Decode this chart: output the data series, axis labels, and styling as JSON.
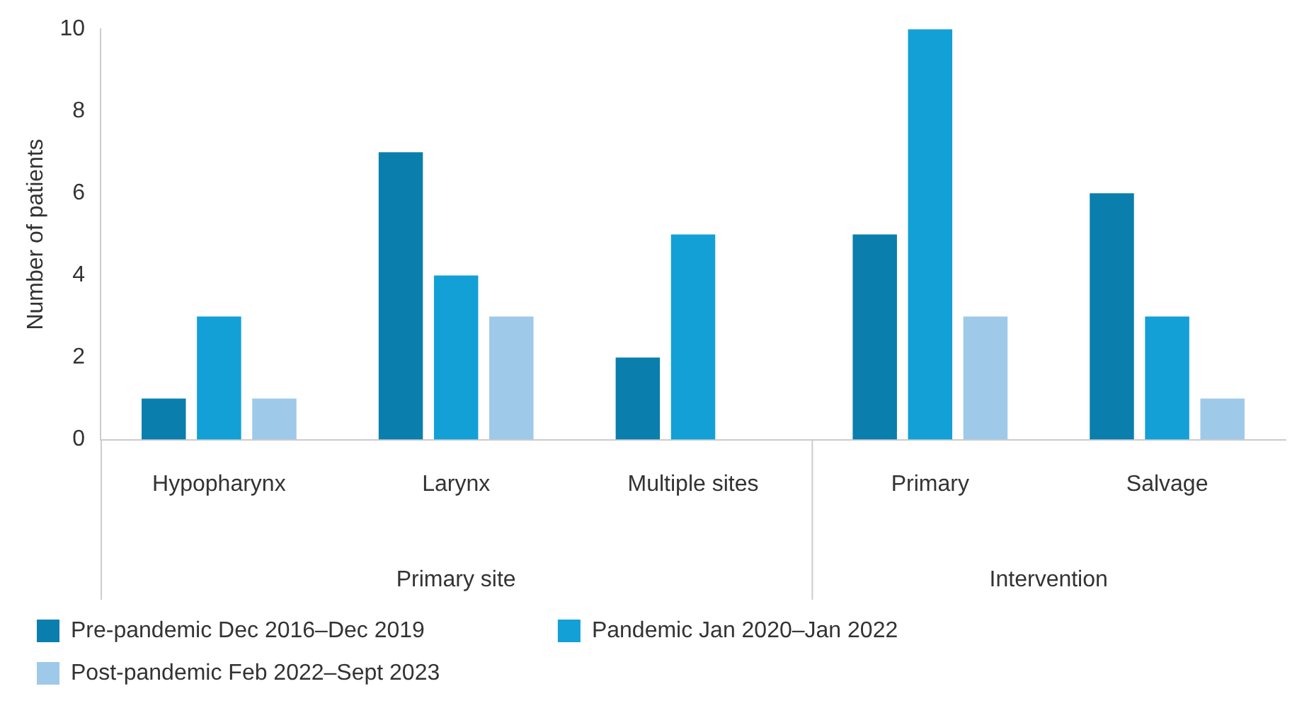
{
  "chart_data": {
    "type": "bar",
    "ylabel": "Number of patients",
    "categories": [
      "Hypopharynx",
      "Larynx",
      "Multiple sites",
      "Primary",
      "Salvage"
    ],
    "series": [
      {
        "name": "Pre-pandemic Dec 2016–Dec 2019",
        "color": "#0a7fad",
        "values": [
          1,
          7,
          2,
          5,
          6
        ]
      },
      {
        "name": "Pandemic Jan 2020–Jan 2022",
        "color": "#12a0d7",
        "values": [
          3,
          4,
          5,
          10,
          3
        ]
      },
      {
        "name": "Post-pandemic Feb 2022–Sept 2023",
        "color": "#9fc9e9",
        "values": [
          1,
          3,
          null,
          3,
          1
        ]
      }
    ],
    "annotations": [
      "Primary site",
      "Intervention"
    ],
    "ylim": [
      0,
      10
    ],
    "yticks": [
      0,
      2,
      4,
      6,
      8,
      10
    ],
    "grid": false,
    "legend": "bottom"
  }
}
